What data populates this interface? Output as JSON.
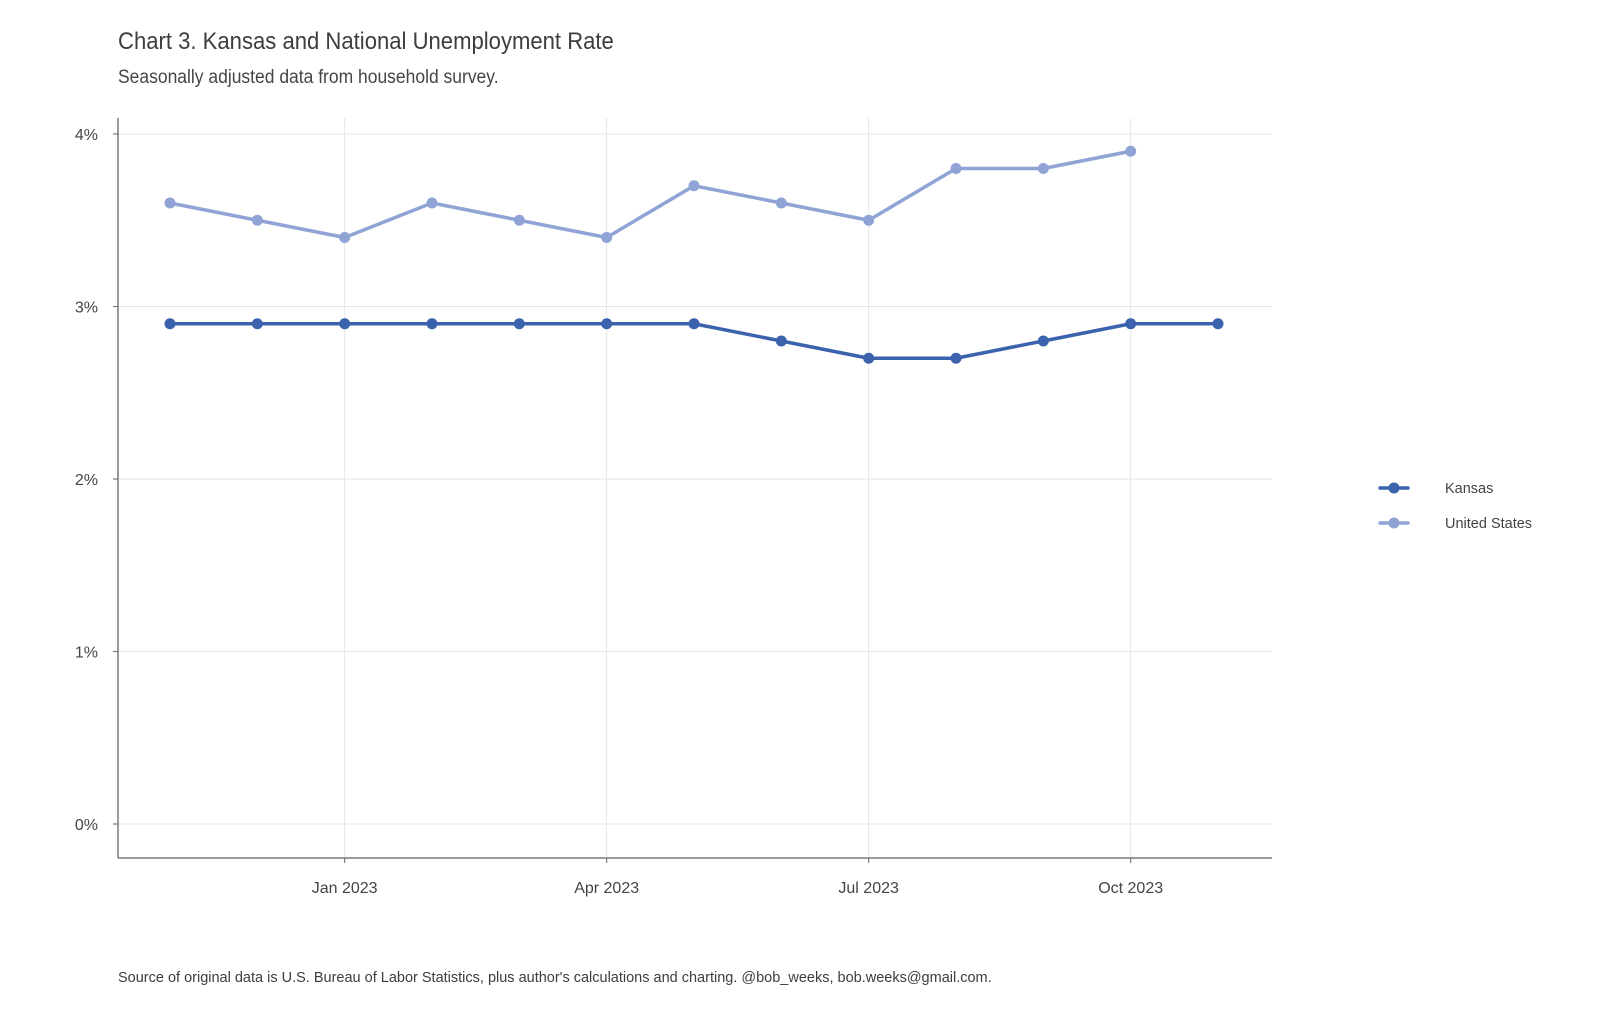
{
  "chart_data": {
    "type": "line",
    "title": "Chart 3. Kansas and National Unemployment Rate",
    "subtitle": "Seasonally adjusted data from household survey.",
    "caption": "Source of original data is U.S. Bureau of Labor Statistics, plus author's calculations and charting. @bob_weeks, bob.weeks@gmail.com.",
    "xlabel": "",
    "ylabel": "",
    "x": [
      "2022-11",
      "2022-12",
      "2023-01",
      "2023-02",
      "2023-03",
      "2023-04",
      "2023-05",
      "2023-06",
      "2023-07",
      "2023-08",
      "2023-09",
      "2023-10",
      "2023-11"
    ],
    "x_ticks": [
      "Jan 2023",
      "Apr 2023",
      "Jul 2023",
      "Oct 2023"
    ],
    "y_ticks": [
      "0%",
      "1%",
      "2%",
      "3%",
      "4%"
    ],
    "ylim": [
      0,
      4
    ],
    "grid": true,
    "legend_position": "right",
    "series": [
      {
        "name": "Kansas",
        "color": "#3a62ad",
        "values": [
          2.9,
          2.9,
          2.9,
          2.9,
          2.9,
          2.9,
          2.9,
          2.8,
          2.7,
          2.7,
          2.8,
          2.9,
          2.9
        ]
      },
      {
        "name": "United States",
        "color": "#8fa3d5",
        "values": [
          3.6,
          3.5,
          3.4,
          3.6,
          3.5,
          3.4,
          3.7,
          3.6,
          3.5,
          3.8,
          3.8,
          3.9,
          null
        ]
      }
    ]
  }
}
